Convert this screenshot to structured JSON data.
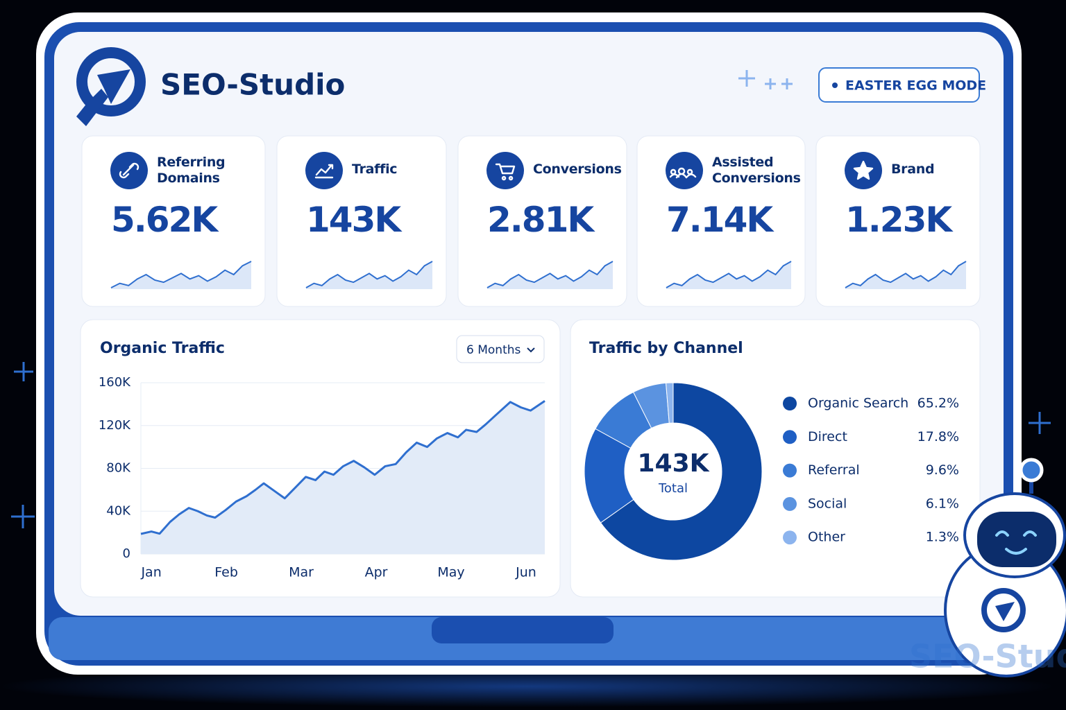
{
  "header": {
    "brand": "SEO-Studio",
    "button": "EASTER EGG MODE"
  },
  "kpis": [
    {
      "label": "Referring Domains",
      "value": "5.62K",
      "trend": [
        10,
        14,
        12,
        18,
        22,
        17,
        15,
        19,
        23,
        18,
        21,
        16,
        20,
        26,
        22,
        30,
        34
      ]
    },
    {
      "label": "Traffic",
      "value": "143K",
      "trend": [
        10,
        14,
        12,
        18,
        22,
        17,
        15,
        19,
        23,
        18,
        21,
        16,
        20,
        26,
        22,
        30,
        34
      ]
    },
    {
      "label": "Conversions",
      "value": "2.81K",
      "trend": [
        10,
        14,
        12,
        18,
        22,
        17,
        15,
        19,
        23,
        18,
        21,
        16,
        20,
        26,
        22,
        30,
        34
      ]
    },
    {
      "label": "Assisted Conversions",
      "value": "7.14K",
      "trend": [
        10,
        14,
        12,
        18,
        22,
        17,
        15,
        19,
        23,
        18,
        21,
        16,
        20,
        26,
        22,
        30,
        34
      ]
    },
    {
      "label": "Brand",
      "value": "1.23K",
      "trend": [
        10,
        14,
        12,
        18,
        22,
        17,
        15,
        19,
        23,
        18,
        21,
        16,
        20,
        26,
        22,
        30,
        34
      ]
    }
  ],
  "chart_data": [
    {
      "type": "line",
      "title": "Organic Traffic",
      "dropdown": "6 Months",
      "color": "#2f6fcf",
      "x": [
        -0.14,
        0,
        0.11,
        0.25,
        0.37,
        0.5,
        0.62,
        0.74,
        0.85,
        0.99,
        1.13,
        1.27,
        1.39,
        1.5,
        1.64,
        1.78,
        1.92,
        2.06,
        2.19,
        2.31,
        2.43,
        2.56,
        2.7,
        2.84,
        2.98,
        3.12,
        3.26,
        3.4,
        3.54,
        3.68,
        3.81,
        3.95,
        4.09,
        4.2,
        4.34,
        4.46,
        4.6,
        4.79,
        4.93,
        5.06,
        5.25
      ],
      "values": [
        18800,
        21000,
        19000,
        30000,
        37000,
        43000,
        40000,
        36000,
        34000,
        41000,
        49000,
        54000,
        60000,
        66000,
        59000,
        52000,
        62000,
        72000,
        69000,
        77000,
        74000,
        82000,
        87000,
        81000,
        74000,
        82000,
        84000,
        95000,
        104000,
        100000,
        108000,
        113000,
        109000,
        116000,
        114000,
        121000,
        130000,
        142000,
        137000,
        134000,
        143000
      ],
      "xlim": [
        -0.14,
        5.25
      ],
      "xticks": [
        {
          "value": 0,
          "label": "Jan"
        },
        {
          "value": 1,
          "label": "Feb"
        },
        {
          "value": 2,
          "label": "Mar"
        },
        {
          "value": 3,
          "label": "Apr"
        },
        {
          "value": 4,
          "label": "May"
        },
        {
          "value": 5,
          "label": "Jun"
        }
      ],
      "ylim": [
        0,
        160000
      ],
      "yticks": [
        0,
        {
          "value": 40000,
          "label": "40K"
        },
        {
          "value": 80000,
          "label": "80K"
        },
        {
          "value": 120000,
          "label": "120K"
        },
        {
          "value": 160000,
          "label": "160K"
        }
      ],
      "grid": true
    },
    {
      "type": "pie",
      "title": "Traffic by Channel",
      "center_value": "143K",
      "center_label": "Total",
      "categories": [
        "Organic Search",
        "Direct",
        "Referral",
        "Social",
        "Other"
      ],
      "values": [
        65.2,
        17.8,
        9.6,
        6.1,
        1.3
      ],
      "value_labels": [
        "65.2%",
        "17.8%",
        "9.6%",
        "6.1%",
        "1.3%"
      ],
      "colors": [
        "#0d47a1",
        "#1f5fc4",
        "#3a7bd5",
        "#5b93e0",
        "#8cb4ee"
      ]
    }
  ],
  "watermark": "SEO-Studio"
}
